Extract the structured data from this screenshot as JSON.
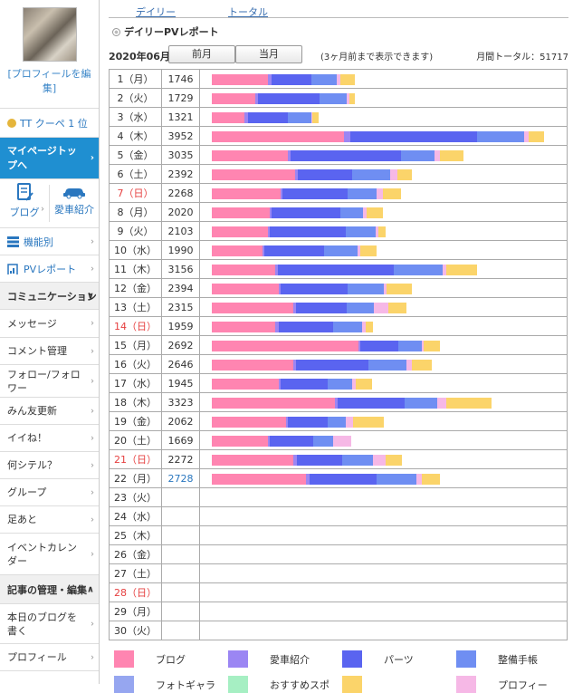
{
  "sidebar": {
    "profile_edit": "[プロフィールを編集]",
    "rank_text": "TT クーペ 1 位",
    "mypage": "マイページトップへ",
    "blog": "ブログ",
    "car": "愛車紹介",
    "by_function": "機能別",
    "pv_report": "PVレポート",
    "communication": "コミュニケーション",
    "items": [
      "メッセージ",
      "コメント管理",
      "フォロー/フォロワー",
      "みん友更新",
      "イイね！",
      "何シテル？",
      "グループ",
      "足あと",
      "イベントカレンダー"
    ],
    "manage_head": "記事の管理・編集",
    "manage_items": [
      "本日のブログを書く",
      "プロフィール"
    ]
  },
  "tabs": {
    "daily": "デイリー",
    "total": "トータル"
  },
  "report_title": "デイリーPVレポート",
  "controls": {
    "month": "2020年06月",
    "prev": "前月",
    "current": "当月",
    "note": "(3ヶ月前まで表示できます)",
    "monthly_total": "月間トータル：51717"
  },
  "colors": {
    "blog": "#ff85b1",
    "car": "#9b86f3",
    "parts": "#5a64f0",
    "maintenance": "#6f8ef2",
    "photo": "#96a6f0",
    "recommend": "#a6efc3",
    "other": "#fbd46a",
    "profile": "#f6b8e6"
  },
  "legend": [
    "ブログ",
    "愛車紹介",
    "パーツ",
    "整備手帳",
    "フォトギャラ",
    "おすすめスポ",
    "",
    "プロフィー"
  ],
  "days": [
    {
      "day": "1（月）",
      "pv": "1746",
      "sun": false,
      "link": false,
      "seg": [
        62,
        4,
        44,
        28,
        4,
        16
      ]
    },
    {
      "day": "2（火）",
      "pv": "1729",
      "sun": false,
      "link": false,
      "seg": [
        48,
        3,
        68,
        30,
        3,
        6
      ]
    },
    {
      "day": "3（水）",
      "pv": "1321",
      "sun": false,
      "link": false,
      "seg": [
        36,
        4,
        44,
        26,
        1,
        7
      ]
    },
    {
      "day": "4（木）",
      "pv": "3952",
      "sun": false,
      "link": false,
      "seg": [
        146,
        7,
        140,
        52,
        5,
        17
      ]
    },
    {
      "day": "5（金）",
      "pv": "3035",
      "sun": false,
      "link": false,
      "seg": [
        84,
        3,
        122,
        37,
        6,
        26
      ]
    },
    {
      "day": "6（土）",
      "pv": "2392",
      "sun": false,
      "link": false,
      "seg": [
        92,
        3,
        60,
        42,
        8,
        16
      ]
    },
    {
      "day": "7（日）",
      "pv": "2268",
      "sun": true,
      "link": false,
      "seg": [
        76,
        2,
        72,
        32,
        7,
        20
      ]
    },
    {
      "day": "8（月）",
      "pv": "2020",
      "sun": false,
      "link": false,
      "seg": [
        64,
        2,
        76,
        25,
        4,
        18
      ]
    },
    {
      "day": "9（火）",
      "pv": "2103",
      "sun": false,
      "link": false,
      "seg": [
        62,
        2,
        84,
        33,
        3,
        8
      ]
    },
    {
      "day": "10（水）",
      "pv": "1990",
      "sun": false,
      "link": false,
      "seg": [
        56,
        2,
        66,
        37,
        3,
        18
      ]
    },
    {
      "day": "11（木）",
      "pv": "3156",
      "sun": false,
      "link": false,
      "seg": [
        70,
        3,
        128,
        54,
        4,
        34
      ]
    },
    {
      "day": "12（金）",
      "pv": "2394",
      "sun": false,
      "link": false,
      "seg": [
        74,
        2,
        74,
        40,
        3,
        28
      ]
    },
    {
      "day": "13（土）",
      "pv": "2315",
      "sun": false,
      "link": false,
      "seg": [
        90,
        3,
        56,
        30,
        16,
        20
      ]
    },
    {
      "day": "14（日）",
      "pv": "1959",
      "sun": true,
      "link": false,
      "seg": [
        70,
        4,
        60,
        32,
        4,
        8
      ]
    },
    {
      "day": "15（月）",
      "pv": "2692",
      "sun": false,
      "link": false,
      "seg": [
        162,
        2,
        42,
        26,
        2,
        18
      ]
    },
    {
      "day": "16（火）",
      "pv": "2646",
      "sun": false,
      "link": false,
      "seg": [
        90,
        3,
        80,
        42,
        6,
        22
      ]
    },
    {
      "day": "17（水）",
      "pv": "1945",
      "sun": false,
      "link": false,
      "seg": [
        74,
        2,
        52,
        27,
        4,
        18
      ]
    },
    {
      "day": "18（木）",
      "pv": "3323",
      "sun": false,
      "link": false,
      "seg": [
        136,
        3,
        74,
        36,
        10,
        50
      ]
    },
    {
      "day": "19（金）",
      "pv": "2062",
      "sun": false,
      "link": false,
      "seg": [
        82,
        2,
        44,
        20,
        8,
        34
      ]
    },
    {
      "day": "20（土）",
      "pv": "1669",
      "sun": false,
      "link": false,
      "seg": [
        62,
        2,
        48,
        22,
        20,
        0
      ]
    },
    {
      "day": "21（日）",
      "pv": "2272",
      "sun": true,
      "link": false,
      "seg": [
        90,
        4,
        50,
        34,
        14,
        18
      ]
    },
    {
      "day": "22（月）",
      "pv": "2728",
      "sun": false,
      "link": true,
      "seg": [
        104,
        4,
        74,
        44,
        6,
        20
      ]
    },
    {
      "day": "23（火）",
      "pv": "",
      "sun": false,
      "link": false,
      "seg": []
    },
    {
      "day": "24（水）",
      "pv": "",
      "sun": false,
      "link": false,
      "seg": []
    },
    {
      "day": "25（木）",
      "pv": "",
      "sun": false,
      "link": false,
      "seg": []
    },
    {
      "day": "26（金）",
      "pv": "",
      "sun": false,
      "link": false,
      "seg": []
    },
    {
      "day": "27（土）",
      "pv": "",
      "sun": false,
      "link": false,
      "seg": []
    },
    {
      "day": "28（日）",
      "pv": "",
      "sun": true,
      "link": false,
      "seg": []
    },
    {
      "day": "29（月）",
      "pv": "",
      "sun": false,
      "link": false,
      "seg": []
    },
    {
      "day": "30（火）",
      "pv": "",
      "sun": false,
      "link": false,
      "seg": []
    }
  ]
}
